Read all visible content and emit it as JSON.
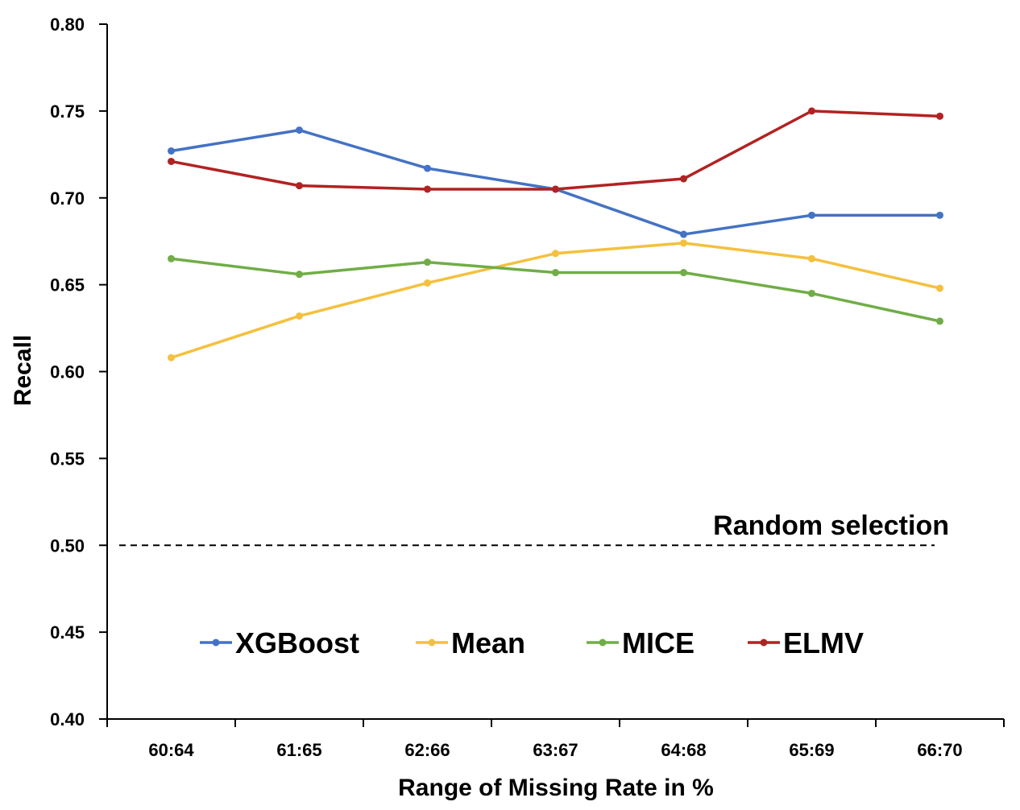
{
  "chart_data": {
    "type": "line",
    "title": "",
    "xlabel": "Range of Missing Rate in %",
    "ylabel": "Recall",
    "categories": [
      "60:64",
      "61:65",
      "62:66",
      "63:67",
      "64:68",
      "65:69",
      "66:70"
    ],
    "ylim": [
      0.4,
      0.8
    ],
    "yticks": [
      "0.40",
      "0.45",
      "0.50",
      "0.55",
      "0.60",
      "0.65",
      "0.70",
      "0.75",
      "0.80"
    ],
    "grid": false,
    "legend_position": "bottom-center",
    "series": [
      {
        "name": "XGBoost",
        "color": "#4472C4",
        "values": [
          0.727,
          0.739,
          0.717,
          0.705,
          0.679,
          0.69,
          0.69
        ]
      },
      {
        "name": "Mean",
        "color": "#F4C03E",
        "values": [
          0.608,
          0.632,
          0.651,
          0.668,
          0.674,
          0.665,
          0.648
        ]
      },
      {
        "name": "MICE",
        "color": "#70AD47",
        "values": [
          0.665,
          0.656,
          0.663,
          0.657,
          0.657,
          0.645,
          0.629
        ]
      },
      {
        "name": "ELMV",
        "color": "#B22222",
        "values": [
          0.721,
          0.707,
          0.705,
          0.705,
          0.711,
          0.75,
          0.747
        ]
      }
    ],
    "reference_line": {
      "value": 0.5,
      "label": "Random selection",
      "style": "dashed",
      "color": "#000000"
    }
  }
}
